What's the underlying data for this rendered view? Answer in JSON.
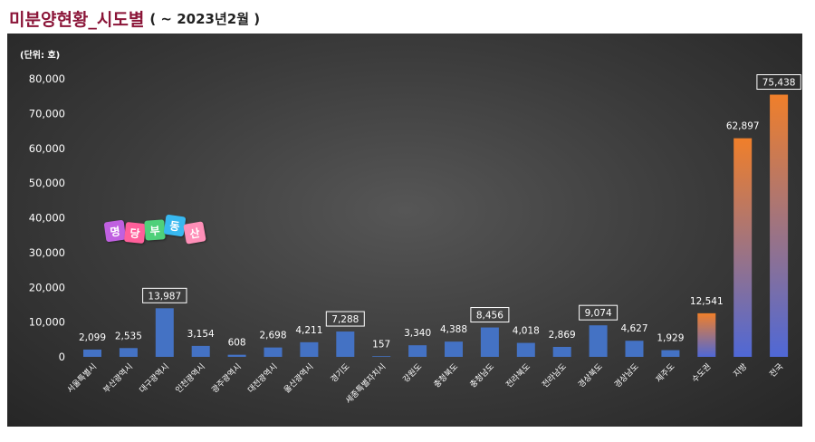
{
  "header": {
    "title": "미분양현황_시도별",
    "subtitle": "(    ~ 2023년2월 )"
  },
  "logo": {
    "chars": [
      "명",
      "당",
      "부",
      "동",
      "산"
    ],
    "colors": [
      "#c060e0",
      "#ff5f9a",
      "#4fd07a",
      "#38b8f0",
      "#ff8fb8"
    ]
  },
  "colors": {
    "blue_bar": "#4472c4",
    "gradient_top": "#f07f2a",
    "gradient_bottom": "#4f68d6"
  },
  "chart_data": {
    "type": "bar",
    "unit_label": "(단위: 호)",
    "categories": [
      "서울특별시",
      "부산광역시",
      "대구광역시",
      "인천광역시",
      "광주광역시",
      "대전광역시",
      "울산광역시",
      "경기도",
      "세종특별자치시",
      "강원도",
      "충청북도",
      "충청남도",
      "전라북도",
      "전라남도",
      "경상북도",
      "경상남도",
      "제주도",
      "수도권",
      "지방",
      "전국"
    ],
    "values": [
      2099,
      2535,
      13987,
      3154,
      608,
      2698,
      4211,
      7288,
      157,
      3340,
      4388,
      8456,
      4018,
      2869,
      9074,
      4627,
      1929,
      12541,
      62897,
      75438
    ],
    "labels": [
      "2,099",
      "2,535",
      "13,987",
      "3,154",
      "608",
      "2,698",
      "4,211",
      "7,288",
      "157",
      "3,340",
      "4,388",
      "8,456",
      "4,018",
      "2,869",
      "9,074",
      "4,627",
      "1,929",
      "12,541",
      "62,897",
      "75,438"
    ],
    "boxed_labels": [
      2,
      7,
      11,
      14,
      19
    ],
    "gradient_bars": [
      17,
      18,
      19
    ],
    "ylim": [
      0,
      80000
    ],
    "yticks": [
      0,
      10000,
      20000,
      30000,
      40000,
      50000,
      60000,
      70000,
      80000
    ],
    "ytick_labels": [
      "0",
      "10,000",
      "20,000",
      "30,000",
      "40,000",
      "50,000",
      "60,000",
      "70,000",
      "80,000"
    ],
    "grid": false,
    "legend": "none"
  }
}
